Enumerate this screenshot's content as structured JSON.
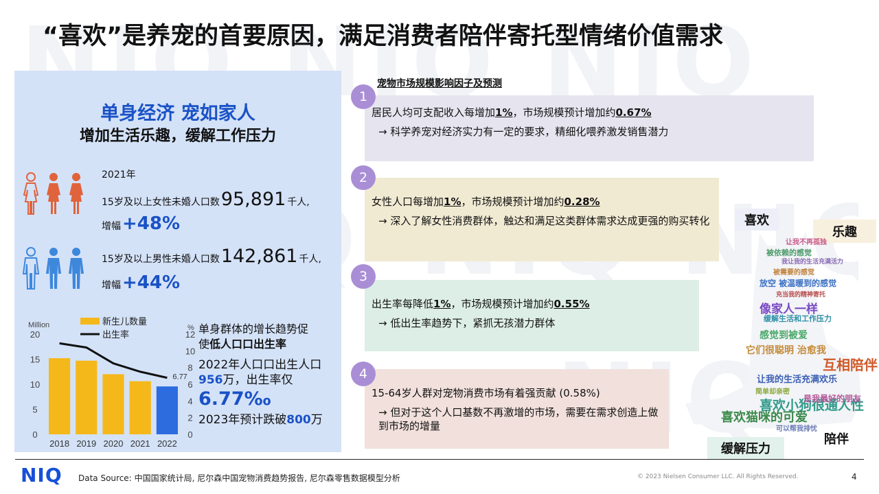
{
  "title": "“喜欢”是养宠的首要原因，满足消费者陪伴寄托型情绪价值需求",
  "watermark": "NIQ",
  "left_panel": {
    "heading": "单身经济 宠如家人",
    "subheading": "增加生活乐趣，缓解工作压力",
    "year": "2021年",
    "female": {
      "label": "15岁及以上女性未婚人口数",
      "value": "95,891",
      "unit": "千人,",
      "growth_label": "增幅",
      "growth": "+48%",
      "icon_color": "#e0633c"
    },
    "male": {
      "label": "15岁及以上男性未婚人口数",
      "value": "142,861",
      "unit": "千人,",
      "growth_label": "增幅",
      "growth": "+44%",
      "icon_color": "#3e88dc"
    },
    "side_text": {
      "line1": "单身群体的增长趋势促",
      "line2a": "使",
      "line2b": "低人口口出生率",
      "line3": "2022年人口口出生人口",
      "line4a": "956",
      "line4b": "万，出生率仅",
      "line5": "6.77‰",
      "line6a": "2023年预计跌破",
      "line6b": "800",
      "line6c": "万"
    }
  },
  "chart_data": {
    "type": "bar",
    "categories": [
      "2018",
      "2019",
      "2020",
      "2021",
      "2022"
    ],
    "series": [
      {
        "name": "新生儿数量",
        "kind": "bar",
        "axis": "left",
        "values": [
          15.2,
          14.7,
          12.0,
          10.6,
          9.56
        ],
        "color": "#f5b81b",
        "highlight_last_color": "#2d6cdf"
      },
      {
        "name": "出生率",
        "kind": "line",
        "axis": "right",
        "values": [
          10.9,
          10.4,
          8.5,
          7.5,
          6.77
        ],
        "color": "#111111"
      }
    ],
    "ylabel": "Million",
    "ylabel_right": "%",
    "ylim": [
      0,
      20
    ],
    "yticks": [
      0,
      5,
      10,
      15,
      20
    ],
    "ylim_right": [
      0,
      12
    ],
    "yticks_right": [
      0,
      2,
      4,
      6,
      8,
      10,
      12
    ],
    "last_label": "6.77",
    "legend": "top-left",
    "grid": false
  },
  "factors": {
    "heading": "宠物市场规模影响因子及预测",
    "items": [
      {
        "num": "1",
        "pre": "居民人均可支配收入每增加",
        "v1": "1%",
        "mid": "，市场规模预计增加约",
        "v2": "0.67%",
        "detail": "→  科学养宠对经济实力有一定的要求，精细化喂养激发销售潜力",
        "bg": "#e6e4ef"
      },
      {
        "num": "2",
        "pre": "女性人口每增加",
        "v1": "1%",
        "mid": "，市场规模预计增加约",
        "v2": "0.28%",
        "detail": "→  深入了解女性消费群体，触达和满足这类群体需求达成更强的购买转化",
        "bg": "#f1ead3"
      },
      {
        "num": "3",
        "pre": "出生率每降低",
        "v1": "1%",
        "mid": "，市场规模预计增加约",
        "v2": "0.55%",
        "detail": "→  低出生率趋势下，紧抓无孩潜力群体",
        "bg": "#ddeee6"
      },
      {
        "num": "4",
        "pre": "15-64岁人群对宠物消费市场有着强贡献 (0.58%)",
        "v1": "",
        "mid": "",
        "v2": "",
        "detail": "→  但对于这个人口基数不再激增的市场，需要在需求创造上做到市场的增量",
        "bg": "#f1e0dc"
      }
    ]
  },
  "word_cloud": {
    "tags": [
      {
        "text": "喜欢",
        "bg": "#eceef8"
      },
      {
        "text": "乐趣",
        "bg": "#f8f0de"
      },
      {
        "text": "陪伴",
        "bg": "#ffffff"
      },
      {
        "text": "缓解压力",
        "bg": "#e2f1ec"
      }
    ],
    "words": [
      {
        "text": "让我不再孤独",
        "color": "#c95a8a"
      },
      {
        "text": "被依赖的感觉",
        "color": "#4a9a6a"
      },
      {
        "text": "我让我的生活充满活力",
        "color": "#8a6ab4"
      },
      {
        "text": "被需要的感觉",
        "color": "#c0823a"
      },
      {
        "text": "放空 被温暖到的感觉",
        "color": "#3a6fc4"
      },
      {
        "text": "充当我的精神寄托",
        "color": "#b84a4a"
      },
      {
        "text": "像家人一样",
        "color": "#7a4ac4"
      },
      {
        "text": "缓解生活和工作压力",
        "color": "#2f8fa8"
      },
      {
        "text": "感觉到被爱",
        "color": "#4aa86a"
      },
      {
        "text": "它们很聪明 治愈我",
        "color": "#c48a3a"
      },
      {
        "text": "互相陪伴",
        "color": "#d05a2a"
      },
      {
        "text": "让我的生活充满欢乐",
        "color": "#3a5fb4"
      },
      {
        "text": "简单却亲密",
        "color": "#8aa83a"
      },
      {
        "text": "喜欢小狗很通人性",
        "color": "#2f9a8a"
      },
      {
        "text": "喜欢猫咪的可爱",
        "color": "#3a8a4a"
      },
      {
        "text": "是我最好的朋友",
        "color": "#b45a9a"
      },
      {
        "text": "可以帮我排忧",
        "color": "#6a7ab4"
      }
    ]
  },
  "footer": {
    "logo": "NIQ",
    "source_label": "Data Source:",
    "source_text": "中国国家统计局, 尼尔森中国宠物消费趋势报告, 尼尔森零售数据模型分析",
    "copyright": "© 2023 Nielsen Consumer LLC. All Rights Reserved.",
    "page": "4"
  }
}
